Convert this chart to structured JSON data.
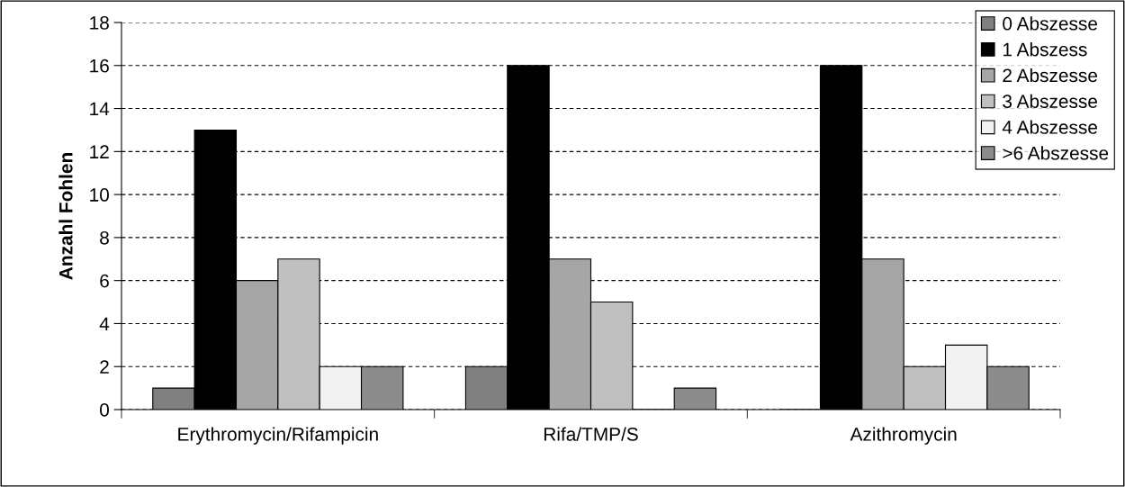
{
  "chart_data": {
    "type": "bar",
    "ylabel": "Anzahl Fohlen",
    "categories": [
      "Erythromycin/Rifampicin",
      "Rifa/TMP/S",
      "Azithromycin"
    ],
    "series": [
      {
        "name": "0 Abszesse",
        "color": "#808080",
        "values": [
          1,
          2,
          0
        ]
      },
      {
        "name": "1 Abszess",
        "color": "#000000",
        "values": [
          13,
          16,
          16
        ]
      },
      {
        "name": "2 Abszesse",
        "color": "#a6a6a6",
        "values": [
          6,
          7,
          7
        ]
      },
      {
        "name": "3 Abszesse",
        "color": "#c0c0c0",
        "values": [
          7,
          5,
          2
        ]
      },
      {
        "name": "4 Abszesse",
        "color": "#f2f2f2",
        "values": [
          2,
          0,
          3
        ]
      },
      {
        "name": ">6 Abszesse",
        "color": "#8c8c8c",
        "values": [
          2,
          1,
          2
        ]
      }
    ],
    "ylim": [
      0,
      18
    ],
    "yticks": [
      0,
      2,
      4,
      6,
      8,
      10,
      12,
      14,
      16,
      18
    ],
    "grid": "y",
    "legend": "top right"
  }
}
